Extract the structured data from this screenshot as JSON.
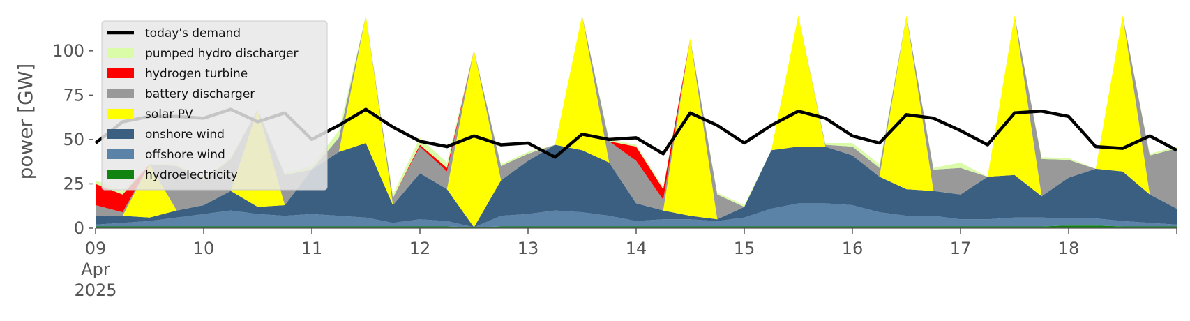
{
  "chart_data": {
    "type": "area",
    "ylabel": "power [GW]",
    "ylim": [
      0,
      120
    ],
    "xlim": [
      "2025-04-09T00:00",
      "2025-04-19T00:00"
    ],
    "grid": false,
    "legend_position": "top-left",
    "x_ticks": [
      {
        "date": "2025-04-09",
        "label": "09",
        "sub1": "Apr",
        "sub2": "2025"
      },
      {
        "date": "2025-04-10",
        "label": "10"
      },
      {
        "date": "2025-04-11",
        "label": "11"
      },
      {
        "date": "2025-04-12",
        "label": "12"
      },
      {
        "date": "2025-04-13",
        "label": "13"
      },
      {
        "date": "2025-04-14",
        "label": "14"
      },
      {
        "date": "2025-04-15",
        "label": "15"
      },
      {
        "date": "2025-04-16",
        "label": "16"
      },
      {
        "date": "2025-04-17",
        "label": "17"
      },
      {
        "date": "2025-04-18",
        "label": "18"
      }
    ],
    "y_ticks": [
      0,
      25,
      50,
      75,
      100
    ],
    "x": [
      "2025-04-09T00:00",
      "2025-04-09T06:00",
      "2025-04-09T12:00",
      "2025-04-09T18:00",
      "2025-04-10T00:00",
      "2025-04-10T06:00",
      "2025-04-10T12:00",
      "2025-04-10T18:00",
      "2025-04-11T00:00",
      "2025-04-11T06:00",
      "2025-04-11T12:00",
      "2025-04-11T18:00",
      "2025-04-12T00:00",
      "2025-04-12T06:00",
      "2025-04-12T12:00",
      "2025-04-12T18:00",
      "2025-04-13T00:00",
      "2025-04-13T06:00",
      "2025-04-13T12:00",
      "2025-04-13T18:00",
      "2025-04-14T00:00",
      "2025-04-14T06:00",
      "2025-04-14T12:00",
      "2025-04-14T18:00",
      "2025-04-15T00:00",
      "2025-04-15T06:00",
      "2025-04-15T12:00",
      "2025-04-15T18:00",
      "2025-04-16T00:00",
      "2025-04-16T06:00",
      "2025-04-16T12:00",
      "2025-04-16T18:00",
      "2025-04-17T00:00",
      "2025-04-17T06:00",
      "2025-04-17T12:00",
      "2025-04-17T18:00",
      "2025-04-18T00:00",
      "2025-04-18T06:00",
      "2025-04-18T12:00",
      "2025-04-18T18:00",
      "2025-04-19T00:00"
    ],
    "series": [
      {
        "name": "hydroelectricity",
        "color": "#118311",
        "values": [
          1,
          1,
          1,
          1,
          1,
          1,
          1,
          1,
          1,
          1,
          1,
          1,
          1,
          1,
          0.5,
          1,
          1,
          1,
          1,
          1,
          1,
          1,
          1,
          1,
          1,
          1,
          1,
          1,
          1,
          1,
          1,
          1,
          1,
          1,
          1,
          1,
          1.5,
          1.5,
          1,
          1,
          1
        ]
      },
      {
        "name": "offshore wind",
        "color": "#5b83a8",
        "values": [
          1,
          2,
          3,
          5,
          7,
          9,
          7,
          6,
          7,
          6,
          5,
          2,
          4,
          3,
          0,
          6,
          7,
          9,
          8,
          6,
          3,
          4,
          4,
          3,
          5,
          10,
          13,
          13,
          12,
          8,
          6,
          6,
          4,
          4,
          5,
          5,
          4,
          4,
          3,
          2,
          1
        ]
      },
      {
        "name": "onshore wind",
        "color": "#3b5f80",
        "values": [
          5,
          4,
          2,
          4,
          5,
          11,
          4,
          6,
          25,
          36,
          42,
          10,
          26,
          18,
          0,
          20,
          30,
          37,
          35,
          30,
          10,
          5,
          2,
          1,
          6,
          33,
          32,
          32,
          28,
          20,
          15,
          14,
          14,
          24,
          24,
          12,
          23,
          28,
          28,
          16,
          9
        ]
      },
      {
        "name": "solar PV",
        "color": "#ffff00",
        "values": [
          0,
          0,
          30,
          0,
          0,
          0,
          55,
          0,
          0,
          0,
          85,
          0,
          0,
          0,
          100,
          0,
          0,
          0,
          100,
          0,
          0,
          0,
          100,
          0,
          0,
          0,
          100,
          0,
          0,
          0,
          100,
          0,
          0,
          0,
          100,
          0,
          0,
          0,
          88,
          0,
          0
        ]
      },
      {
        "name": "battery discharger",
        "color": "#999999",
        "values": [
          6,
          2,
          0,
          25,
          14,
          18,
          0,
          17,
          0,
          8,
          0,
          4,
          15,
          10,
          0,
          8,
          4,
          0,
          0,
          12,
          24,
          6,
          0,
          14,
          0,
          0,
          0,
          1,
          5,
          5,
          0,
          12,
          15,
          0,
          0,
          21,
          10,
          0,
          0,
          22,
          34
        ]
      },
      {
        "name": "hydrogen turbine",
        "color": "#ff0000",
        "values": [
          12,
          10,
          0,
          0,
          0,
          0,
          0,
          0,
          0,
          0,
          0,
          0,
          1,
          2,
          0,
          0,
          0,
          0,
          0,
          0,
          8,
          6,
          0,
          0,
          0,
          0,
          0,
          0,
          0,
          0,
          0,
          0,
          0,
          0,
          0,
          0,
          0,
          0,
          0,
          0,
          0
        ]
      },
      {
        "name": "pumped hydro discharger",
        "color": "#dafba8",
        "values": [
          2,
          2,
          0,
          1,
          1,
          1,
          0,
          1,
          2,
          4,
          0,
          2,
          4,
          3,
          0,
          1,
          1,
          0,
          0,
          1,
          1,
          1,
          0,
          1,
          1,
          0,
          0,
          1,
          2,
          2,
          0,
          1,
          3,
          0,
          0,
          1,
          1,
          0,
          0,
          1,
          1
        ]
      }
    ],
    "demand": {
      "name": "today's demand",
      "color": "#000000",
      "values": [
        48,
        60,
        63,
        63,
        62,
        67,
        60,
        65,
        50,
        58,
        67,
        57,
        49,
        46,
        52,
        47,
        48,
        40,
        53,
        50,
        51,
        42,
        65,
        58,
        48,
        58,
        66,
        62,
        52,
        48,
        64,
        62,
        55,
        47,
        65,
        66,
        63,
        46,
        45,
        52,
        44
      ]
    }
  }
}
